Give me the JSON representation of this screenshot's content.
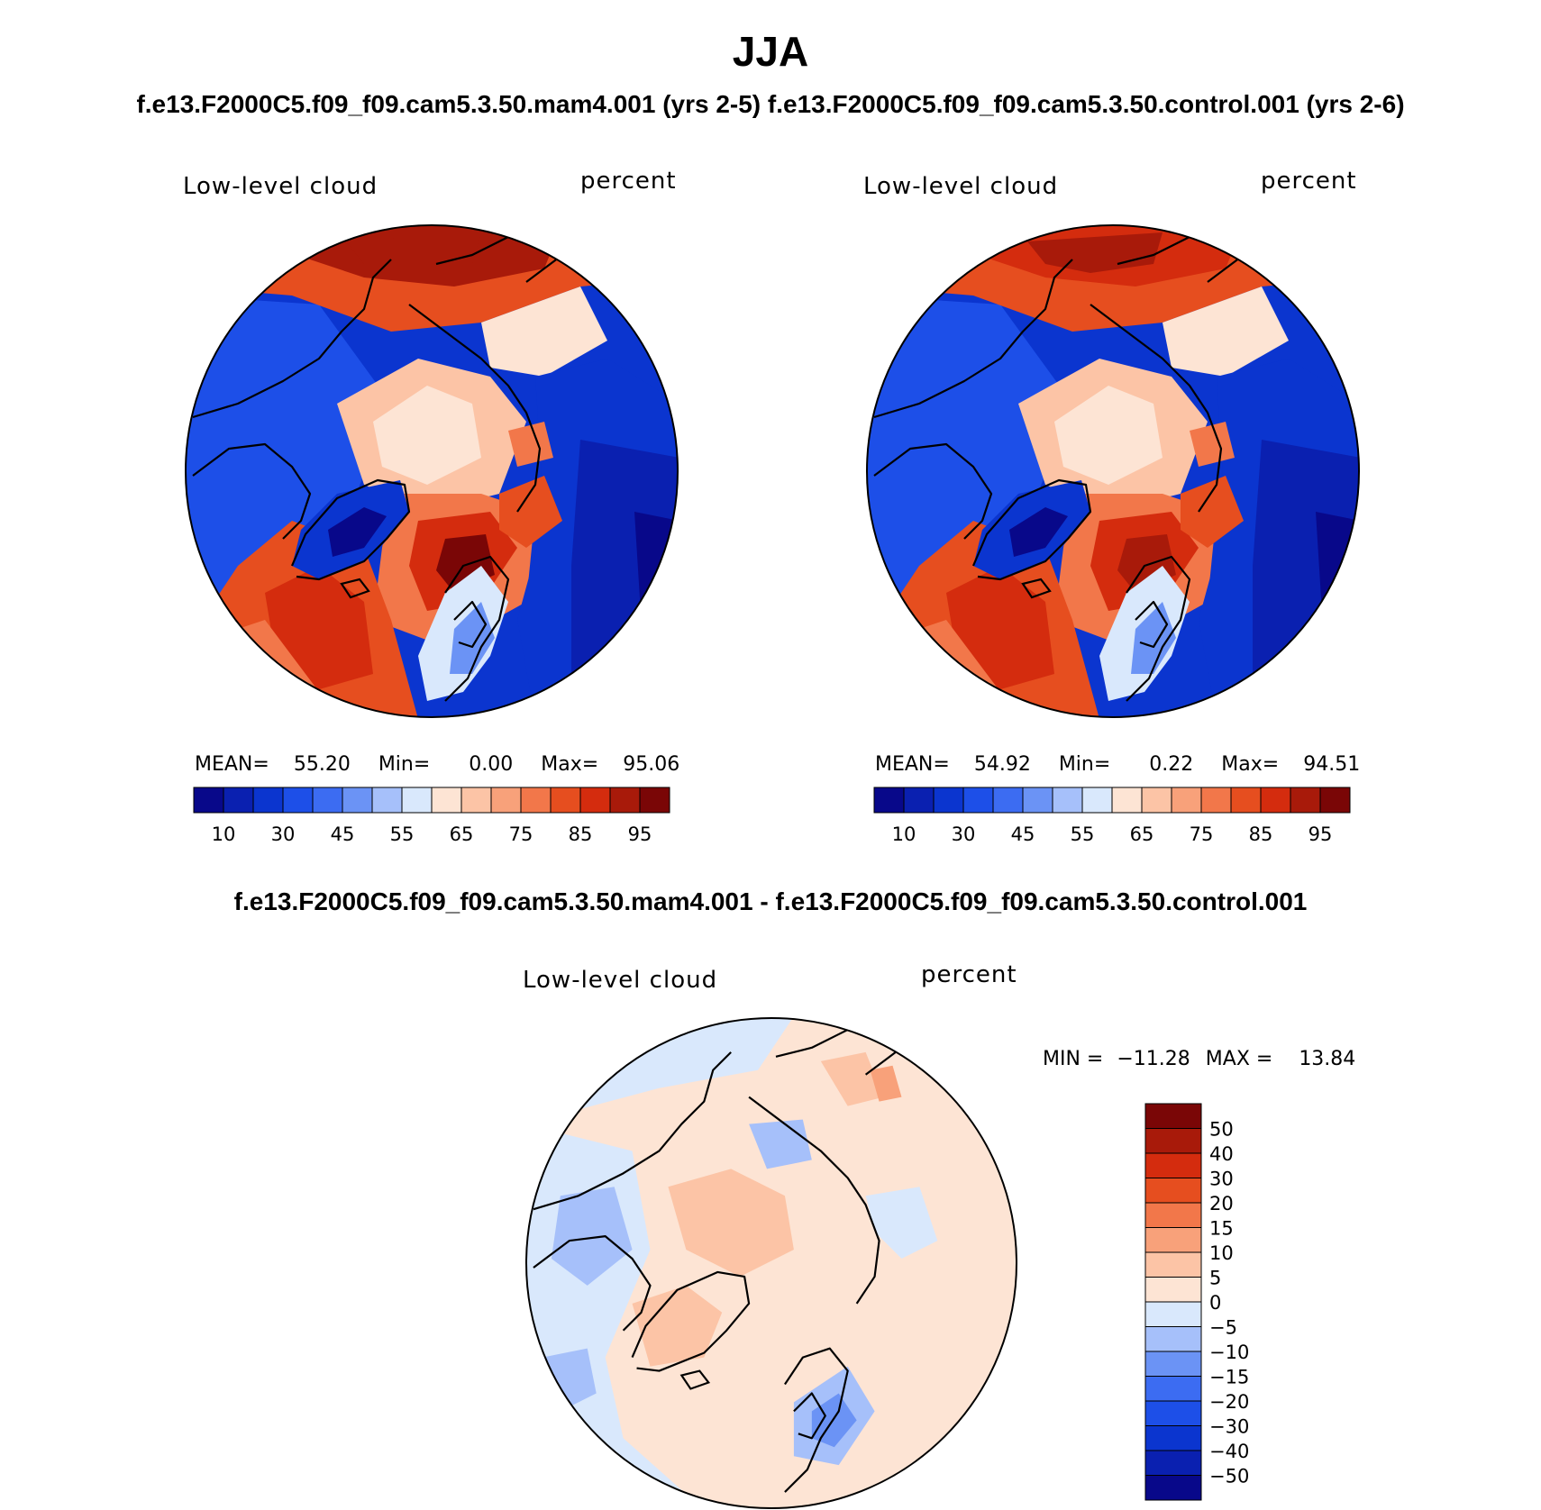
{
  "title": "JJA",
  "subtitle": "f.e13.F2000C5.f09_f09.cam5.3.50.mam4.001 (yrs 2-5) f.e13.F2000C5.f09_f09.cam5.3.50.control.001 (yrs 2-6)",
  "diff_title": "f.e13.F2000C5.f09_f09.cam5.3.50.mam4.001 - f.e13.F2000C5.f09_f09.cam5.3.50.control.001",
  "chart_data": [
    {
      "type": "heatmap",
      "projection": "north-polar-stereographic",
      "field": "Low-level cloud",
      "units": "percent",
      "stats": {
        "mean_label": "MEAN=",
        "mean": "55.20",
        "min_label": "Min=",
        "min": "0.00",
        "max_label": "Max=",
        "max": "95.06"
      },
      "colorbar": {
        "orientation": "horizontal",
        "levels": [
          10,
          20,
          30,
          40,
          45,
          50,
          55,
          60,
          65,
          70,
          75,
          80,
          85,
          90,
          95
        ],
        "tick_labels": [
          "10",
          "30",
          "45",
          "55",
          "65",
          "75",
          "85",
          "95"
        ],
        "colors": [
          "#08088a",
          "#0a20b0",
          "#0b35cf",
          "#1d4fe8",
          "#3c6cf2",
          "#6b93f5",
          "#a6c0fa",
          "#d9e8fc",
          "#fde4d4",
          "#fcc4a6",
          "#f8a17a",
          "#f2774a",
          "#e64e1f",
          "#d42c0e",
          "#a81a0a",
          "#7a0606"
        ]
      },
      "coastline_color": "#000000"
    },
    {
      "type": "heatmap",
      "projection": "north-polar-stereographic",
      "field": "Low-level cloud",
      "units": "percent",
      "stats": {
        "mean_label": "MEAN=",
        "mean": "54.92",
        "min_label": "Min=",
        "min": "0.22",
        "max_label": "Max=",
        "max": "94.51"
      },
      "colorbar": {
        "orientation": "horizontal",
        "levels": [
          10,
          20,
          30,
          40,
          45,
          50,
          55,
          60,
          65,
          70,
          75,
          80,
          85,
          90,
          95
        ],
        "tick_labels": [
          "10",
          "30",
          "45",
          "55",
          "65",
          "75",
          "85",
          "95"
        ],
        "colors": [
          "#08088a",
          "#0a20b0",
          "#0b35cf",
          "#1d4fe8",
          "#3c6cf2",
          "#6b93f5",
          "#a6c0fa",
          "#d9e8fc",
          "#fde4d4",
          "#fcc4a6",
          "#f8a17a",
          "#f2774a",
          "#e64e1f",
          "#d42c0e",
          "#a81a0a",
          "#7a0606"
        ]
      },
      "coastline_color": "#000000"
    },
    {
      "type": "heatmap",
      "projection": "north-polar-stereographic",
      "field": "Low-level cloud",
      "units": "percent",
      "stats": {
        "min_label": "MIN =",
        "min": "−11.28",
        "max_label": "MAX =",
        "max": "13.84"
      },
      "colorbar": {
        "orientation": "vertical",
        "levels": [
          -50,
          -40,
          -30,
          -20,
          -15,
          -10,
          -5,
          0,
          5,
          10,
          15,
          20,
          30,
          40,
          50
        ],
        "tick_labels": [
          "50",
          "40",
          "30",
          "20",
          "15",
          "10",
          "5",
          "0",
          "−5",
          "−10",
          "−15",
          "−20",
          "−30",
          "−40",
          "−50"
        ],
        "colors": [
          "#7a0606",
          "#a81a0a",
          "#d42c0e",
          "#e64e1f",
          "#f2774a",
          "#f8a17a",
          "#fcc4a6",
          "#fde4d4",
          "#d9e8fc",
          "#a6c0fa",
          "#6b93f5",
          "#3c6cf2",
          "#1d4fe8",
          "#0b35cf",
          "#0a20b0",
          "#08088a"
        ]
      },
      "coastline_color": "#000000"
    }
  ]
}
